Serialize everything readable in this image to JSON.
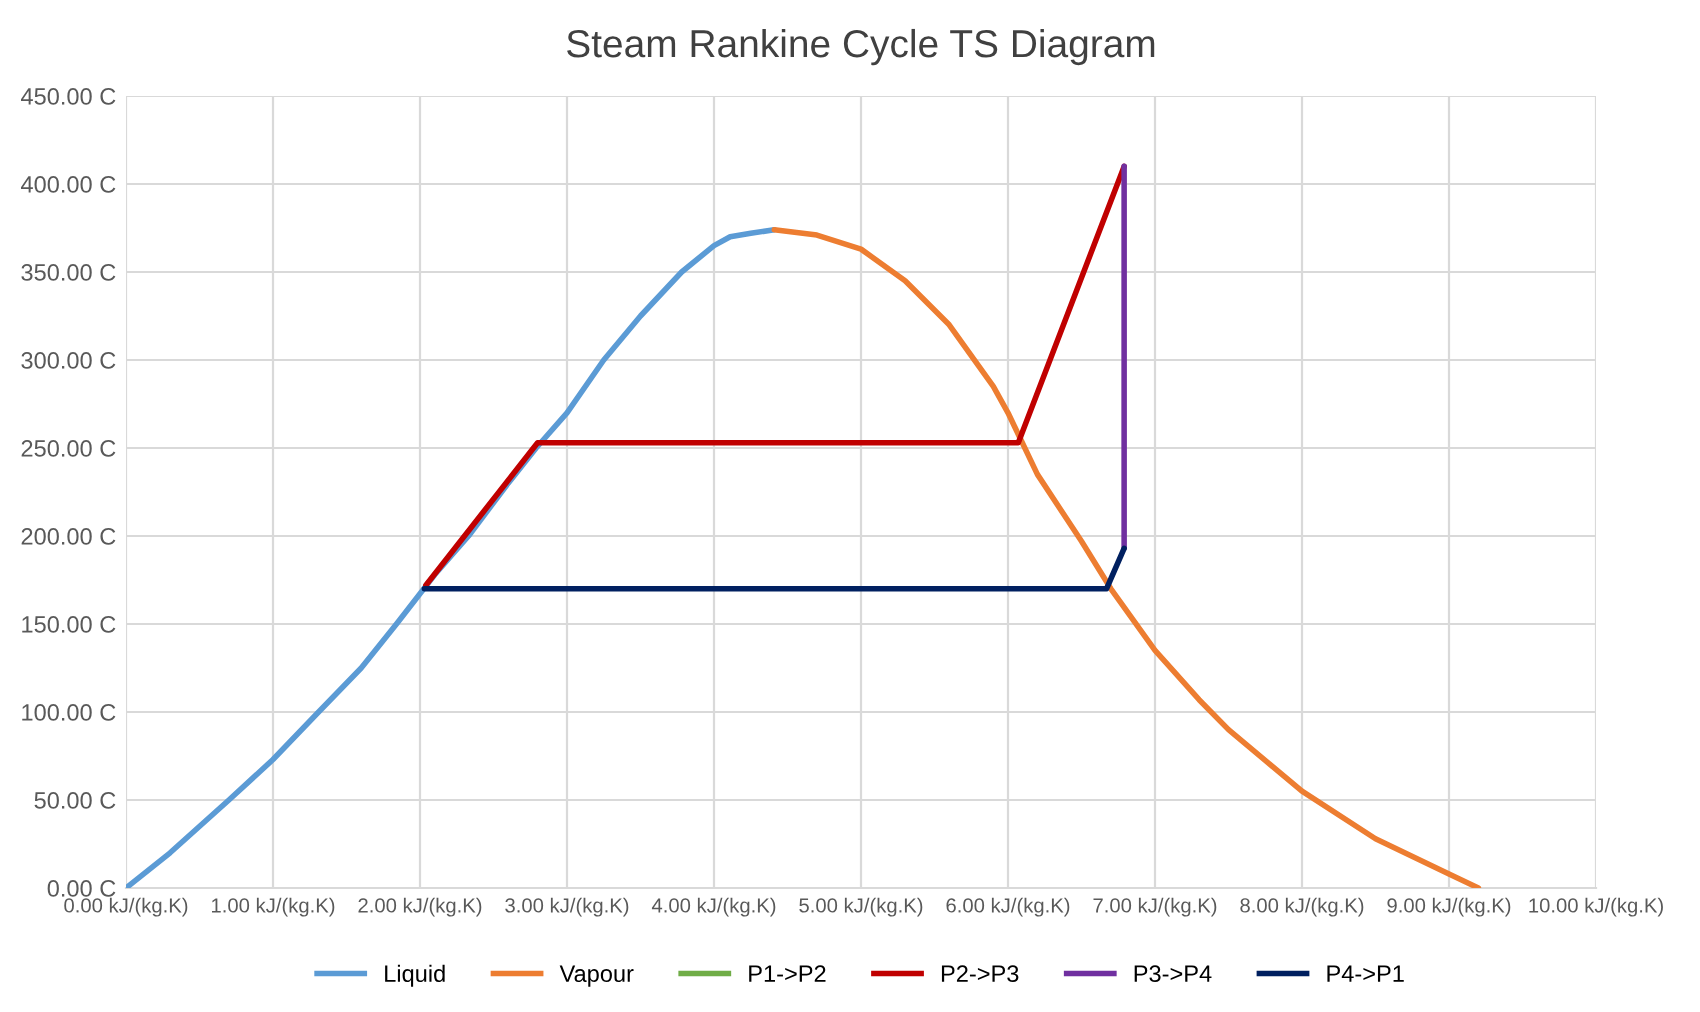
{
  "chart_data": {
    "type": "line",
    "title": "Steam Rankine Cycle TS Diagram",
    "series": [
      {
        "name": "Liquid",
        "color": "#5b9bd5",
        "x": [
          0,
          0.3,
          0.7,
          1.0,
          1.31,
          1.6,
          1.84,
          2.1,
          2.33,
          2.6,
          2.79,
          3.0,
          3.25,
          3.5,
          3.78,
          4.0,
          4.11,
          4.25,
          4.41
        ],
        "values": [
          0,
          20,
          50,
          73,
          100,
          125,
          150,
          178,
          200,
          230,
          250,
          270,
          300,
          325,
          350,
          365,
          370,
          372,
          374
        ]
      },
      {
        "name": "Vapour",
        "color": "#ed7d31",
        "x": [
          4.41,
          4.7,
          5.0,
          5.3,
          5.6,
          5.9,
          6.0,
          6.2,
          6.5,
          6.7,
          7.0,
          7.3,
          7.5,
          8.0,
          8.5,
          9.0,
          9.2
        ],
        "values": [
          374,
          371,
          363,
          345,
          320,
          285,
          270,
          235,
          197,
          170,
          135,
          107,
          90,
          55,
          28,
          8,
          0
        ]
      },
      {
        "name": "P1->P2",
        "color": "#70ad47"
      },
      {
        "name": "P2->P3",
        "color": "#c00000",
        "x": [
          2.04,
          2.8,
          6.07,
          6.79
        ],
        "values": [
          172,
          253,
          253,
          410
        ]
      },
      {
        "name": "P3->P4",
        "color": "#7030a0",
        "x": [
          6.79,
          6.79
        ],
        "values": [
          410,
          193
        ]
      },
      {
        "name": "P4->P1",
        "color": "#002060",
        "x": [
          6.79,
          6.67,
          2.03
        ],
        "values": [
          193,
          170,
          170
        ]
      }
    ],
    "xlim": [
      0,
      10
    ],
    "xticks": [
      {
        "value": 0,
        "label": "0.00 kJ/(kg.K)"
      },
      {
        "value": 1,
        "label": "1.00 kJ/(kg.K)"
      },
      {
        "value": 2,
        "label": "2.00 kJ/(kg.K)"
      },
      {
        "value": 3,
        "label": "3.00 kJ/(kg.K)"
      },
      {
        "value": 4,
        "label": "4.00 kJ/(kg.K)"
      },
      {
        "value": 5,
        "label": "5.00 kJ/(kg.K)"
      },
      {
        "value": 6,
        "label": "6.00 kJ/(kg.K)"
      },
      {
        "value": 7,
        "label": "7.00 kJ/(kg.K)"
      },
      {
        "value": 8,
        "label": "8.00 kJ/(kg.K)"
      },
      {
        "value": 9,
        "label": "9.00 kJ/(kg.K)"
      },
      {
        "value": 10,
        "label": "10.00 kJ/(kg.K)"
      }
    ],
    "ylim": [
      0,
      450
    ],
    "yticks": [
      {
        "value": 0,
        "label": "0.00 C"
      },
      {
        "value": 50,
        "label": "50.00 C"
      },
      {
        "value": 100,
        "label": "100.00 C"
      },
      {
        "value": 150,
        "label": "150.00 C"
      },
      {
        "value": 200,
        "label": "200.00 C"
      },
      {
        "value": 250,
        "label": "250.00 C"
      },
      {
        "value": 300,
        "label": "300.00 C"
      },
      {
        "value": 350,
        "label": "350.00 C"
      },
      {
        "value": 400,
        "label": "400.00 C"
      },
      {
        "value": 450,
        "label": "450.00 C"
      }
    ],
    "grid": true,
    "legend": "bottom",
    "marker": "none",
    "line_style": "solid"
  }
}
